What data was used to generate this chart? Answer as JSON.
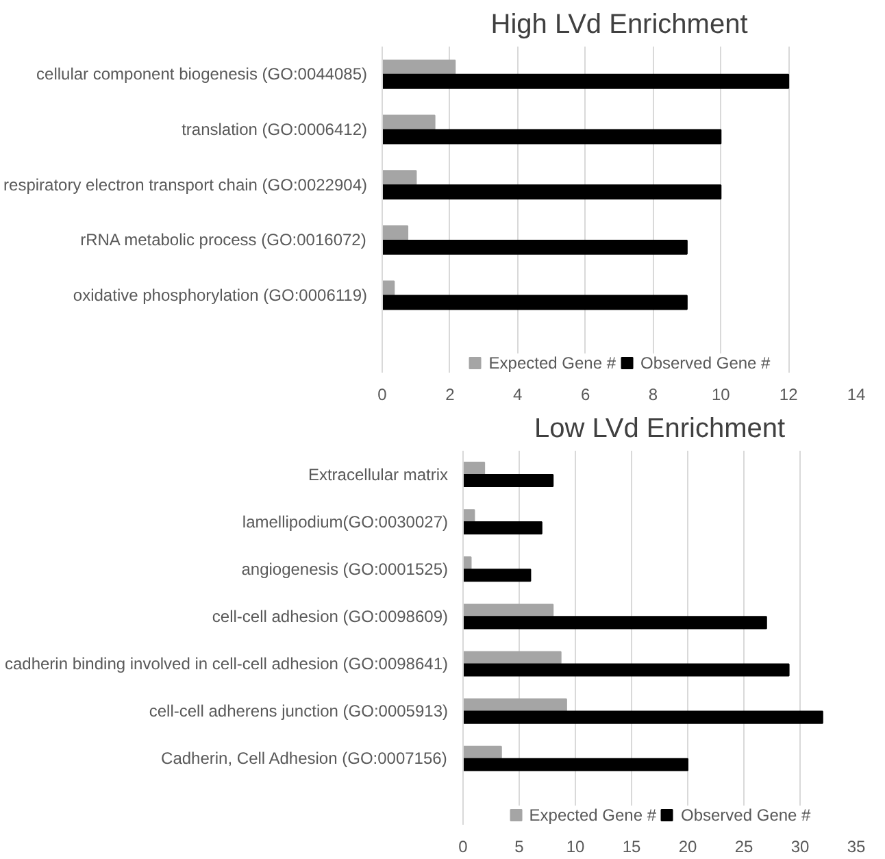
{
  "chart_data": [
    {
      "type": "bar",
      "orientation": "horizontal",
      "title": "High LVd Enrichment",
      "categories": [
        "cellular component biogenesis (GO:0044085)",
        "translation (GO:0006412)",
        "respiratory electron transport chain (GO:0022904)",
        "rRNA metabolic process (GO:0016072)",
        "oxidative phosphorylation (GO:0006119)"
      ],
      "series": [
        {
          "name": "Expected Gene #",
          "color": "#a5a5a5",
          "values": [
            2.15,
            1.55,
            1.0,
            0.75,
            0.35
          ]
        },
        {
          "name": "Observed Gene #",
          "color": "#000000",
          "values": [
            12,
            10,
            10,
            9,
            9
          ]
        }
      ],
      "xlim": [
        0,
        14
      ],
      "xticks": [
        0,
        2,
        4,
        6,
        8,
        10,
        12,
        14
      ],
      "grid": "x",
      "legend": "bottom"
    },
    {
      "type": "bar",
      "orientation": "horizontal",
      "title": "Low LVd Enrichment",
      "categories": [
        "Extracellular matrix",
        "lamellipodium(GO:0030027)",
        "angiogenesis (GO:0001525)",
        "cell-cell adhesion (GO:0098609)",
        "cadherin binding involved in cell-cell adhesion (GO:0098641)",
        "cell-cell adherens junction (GO:0005913)",
        "Cadherin, Cell Adhesion (GO:0007156)"
      ],
      "series": [
        {
          "name": "Expected Gene #",
          "color": "#a5a5a5",
          "values": [
            1.9,
            1.0,
            0.7,
            8.0,
            8.7,
            9.2,
            3.4
          ]
        },
        {
          "name": "Observed Gene #",
          "color": "#000000",
          "values": [
            8,
            7,
            6,
            27,
            29,
            32,
            20
          ]
        }
      ],
      "xlim": [
        0,
        35
      ],
      "xticks": [
        0,
        5,
        10,
        15,
        20,
        25,
        30,
        35
      ],
      "grid": "x",
      "legend": "bottom"
    }
  ]
}
